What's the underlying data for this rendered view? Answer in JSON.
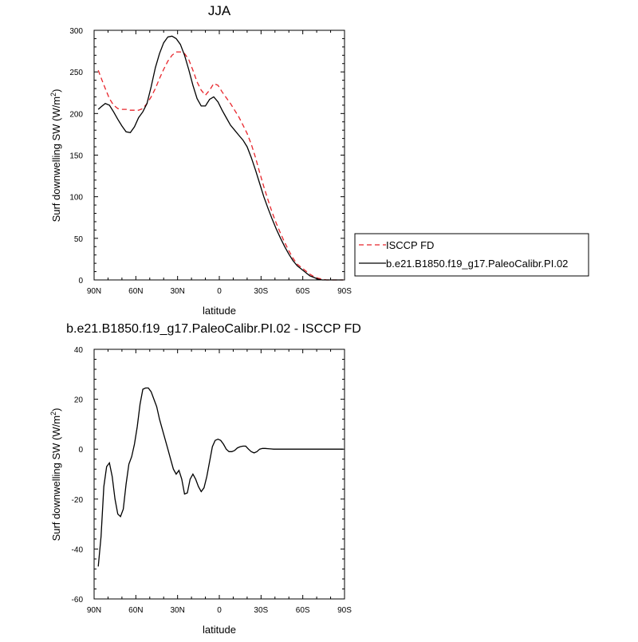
{
  "chart_data": [
    {
      "type": "line",
      "title": "JJA",
      "xlabel": "latitude",
      "ylabel": "Surf downwelling SW (W/m²)",
      "ylabel_main": "Surf downwelling SW (W/m",
      "ylabel_sup": "2",
      "ylabel_end": ")",
      "xlim": [
        90,
        -90
      ],
      "ylim": [
        0,
        300
      ],
      "xticks": [
        90,
        60,
        30,
        0,
        -30,
        -60,
        -90
      ],
      "xtick_labels": [
        "90N",
        "60N",
        "30N",
        "0",
        "30S",
        "60S",
        "90S"
      ],
      "yticks": [
        0,
        50,
        100,
        150,
        200,
        250,
        300
      ],
      "ytick_labels": [
        "0",
        "50",
        "100",
        "150",
        "200",
        "250",
        "300"
      ],
      "legend_position": "right",
      "series": [
        {
          "name": "ISCCP FD",
          "color": "#e8252b",
          "dash": "dashed",
          "x": [
            87,
            85,
            82,
            79,
            76,
            73,
            70,
            67,
            64,
            61,
            58,
            55,
            52,
            49,
            46,
            43,
            40,
            37,
            34,
            31,
            28,
            25,
            22,
            19,
            16,
            13,
            10,
            7,
            4,
            1,
            -2,
            -5,
            -8,
            -11,
            -14,
            -17,
            -20,
            -23,
            -26,
            -29,
            -32,
            -35,
            -38,
            -41,
            -44,
            -47,
            -50,
            -53,
            -56,
            -59,
            -62,
            -65,
            -68,
            -71,
            -74,
            -77,
            -80,
            -83,
            -86,
            -89
          ],
          "y": [
            252,
            243,
            230,
            218,
            210,
            206,
            205,
            205,
            204,
            204,
            204,
            206,
            212,
            220,
            230,
            242,
            253,
            263,
            270,
            274,
            274,
            272,
            265,
            252,
            238,
            228,
            222,
            228,
            236,
            234,
            226,
            219,
            212,
            204,
            196,
            186,
            176,
            163,
            147,
            129,
            112,
            96,
            81,
            68,
            56,
            45,
            35,
            26,
            19,
            15,
            11,
            7,
            4,
            2,
            1,
            0,
            0,
            0,
            0,
            0
          ]
        },
        {
          "name": "b.e21.B1850.f19_g17.PaleoCalibr.PI.02",
          "color": "#000000",
          "dash": "solid",
          "x": [
            87,
            85,
            82,
            79,
            76,
            73,
            70,
            67,
            64,
            61,
            58,
            55,
            52,
            49,
            46,
            43,
            40,
            37,
            34,
            31,
            28,
            25,
            22,
            19,
            16,
            13,
            10,
            7,
            4,
            1,
            -2,
            -5,
            -8,
            -11,
            -14,
            -17,
            -20,
            -23,
            -26,
            -29,
            -32,
            -35,
            -38,
            -41,
            -44,
            -47,
            -50,
            -53,
            -56,
            -59,
            -62,
            -65,
            -68,
            -71,
            -74,
            -77,
            -80,
            -83,
            -86,
            -89
          ],
          "y": [
            205,
            208,
            212,
            210,
            202,
            193,
            185,
            178,
            177,
            184,
            195,
            202,
            212,
            232,
            255,
            272,
            285,
            292,
            293,
            290,
            283,
            270,
            253,
            234,
            218,
            209,
            209,
            217,
            220,
            214,
            204,
            195,
            186,
            180,
            174,
            168,
            160,
            147,
            132,
            116,
            100,
            86,
            73,
            61,
            50,
            40,
            31,
            23,
            17,
            13,
            9,
            5,
            3,
            1,
            0,
            0,
            0,
            0,
            0,
            0
          ]
        }
      ]
    },
    {
      "type": "line",
      "title": "b.e21.B1850.f19_g17.PaleoCalibr.PI.02 - ISCCP FD",
      "xlabel": "latitude",
      "ylabel": "Surf downwelling SW (W/m²)",
      "ylabel_main": "Surf downwelling SW (W/m",
      "ylabel_sup": "2",
      "ylabel_end": ")",
      "xlim": [
        90,
        -90
      ],
      "ylim": [
        -60,
        40
      ],
      "xticks": [
        90,
        60,
        30,
        0,
        -30,
        -60,
        -90
      ],
      "xtick_labels": [
        "90N",
        "60N",
        "30N",
        "0",
        "30S",
        "60S",
        "90S"
      ],
      "yticks": [
        -60,
        -40,
        -20,
        0,
        20,
        40
      ],
      "ytick_labels": [
        "-60",
        "-40",
        "-20",
        "0",
        "20",
        "40"
      ],
      "series": [
        {
          "color": "#000000",
          "dash": "solid",
          "x": [
            87,
            85,
            83,
            81,
            79,
            77,
            75,
            73,
            71,
            69,
            67,
            65,
            63,
            61,
            59,
            57,
            55,
            53,
            51,
            49,
            47,
            45,
            43,
            41,
            39,
            37,
            35,
            33,
            31,
            29,
            27,
            25,
            23,
            21,
            19,
            17,
            15,
            13,
            11,
            9,
            7,
            5,
            3,
            1,
            -1,
            -3,
            -5,
            -7,
            -9,
            -11,
            -13,
            -15,
            -17,
            -19,
            -21,
            -23,
            -25,
            -27,
            -29,
            -31,
            -33,
            -35,
            -37,
            -39,
            -41,
            -43,
            -45,
            -47,
            -49,
            -51,
            -53,
            -55,
            -57,
            -59,
            -61,
            -63,
            -65,
            -67,
            -69,
            -71,
            -73,
            -75,
            -77,
            -79,
            -81,
            -83,
            -85,
            -87,
            -89
          ],
          "y": [
            -47,
            -35,
            -15,
            -7,
            -5.5,
            -11,
            -20,
            -26,
            -27,
            -24,
            -14,
            -6,
            -3,
            2,
            9,
            18,
            24,
            24.5,
            24.5,
            23,
            20,
            17,
            12,
            8,
            4,
            0,
            -4,
            -8,
            -10,
            -8.5,
            -12,
            -18,
            -17.5,
            -12,
            -10,
            -12,
            -15,
            -17,
            -15.5,
            -11,
            -5,
            1,
            3.5,
            4,
            3.5,
            2,
            0,
            -1,
            -1,
            -0.5,
            0.5,
            1,
            1.2,
            1.2,
            0,
            -1,
            -1.5,
            -1,
            0,
            0.3,
            0.3,
            0.2,
            0.1,
            0,
            0,
            0,
            0,
            0,
            0,
            0,
            0,
            0,
            0,
            0,
            0,
            0,
            0,
            0,
            0,
            0,
            0,
            0,
            0,
            0,
            0,
            0,
            0,
            0,
            0
          ]
        }
      ]
    }
  ]
}
